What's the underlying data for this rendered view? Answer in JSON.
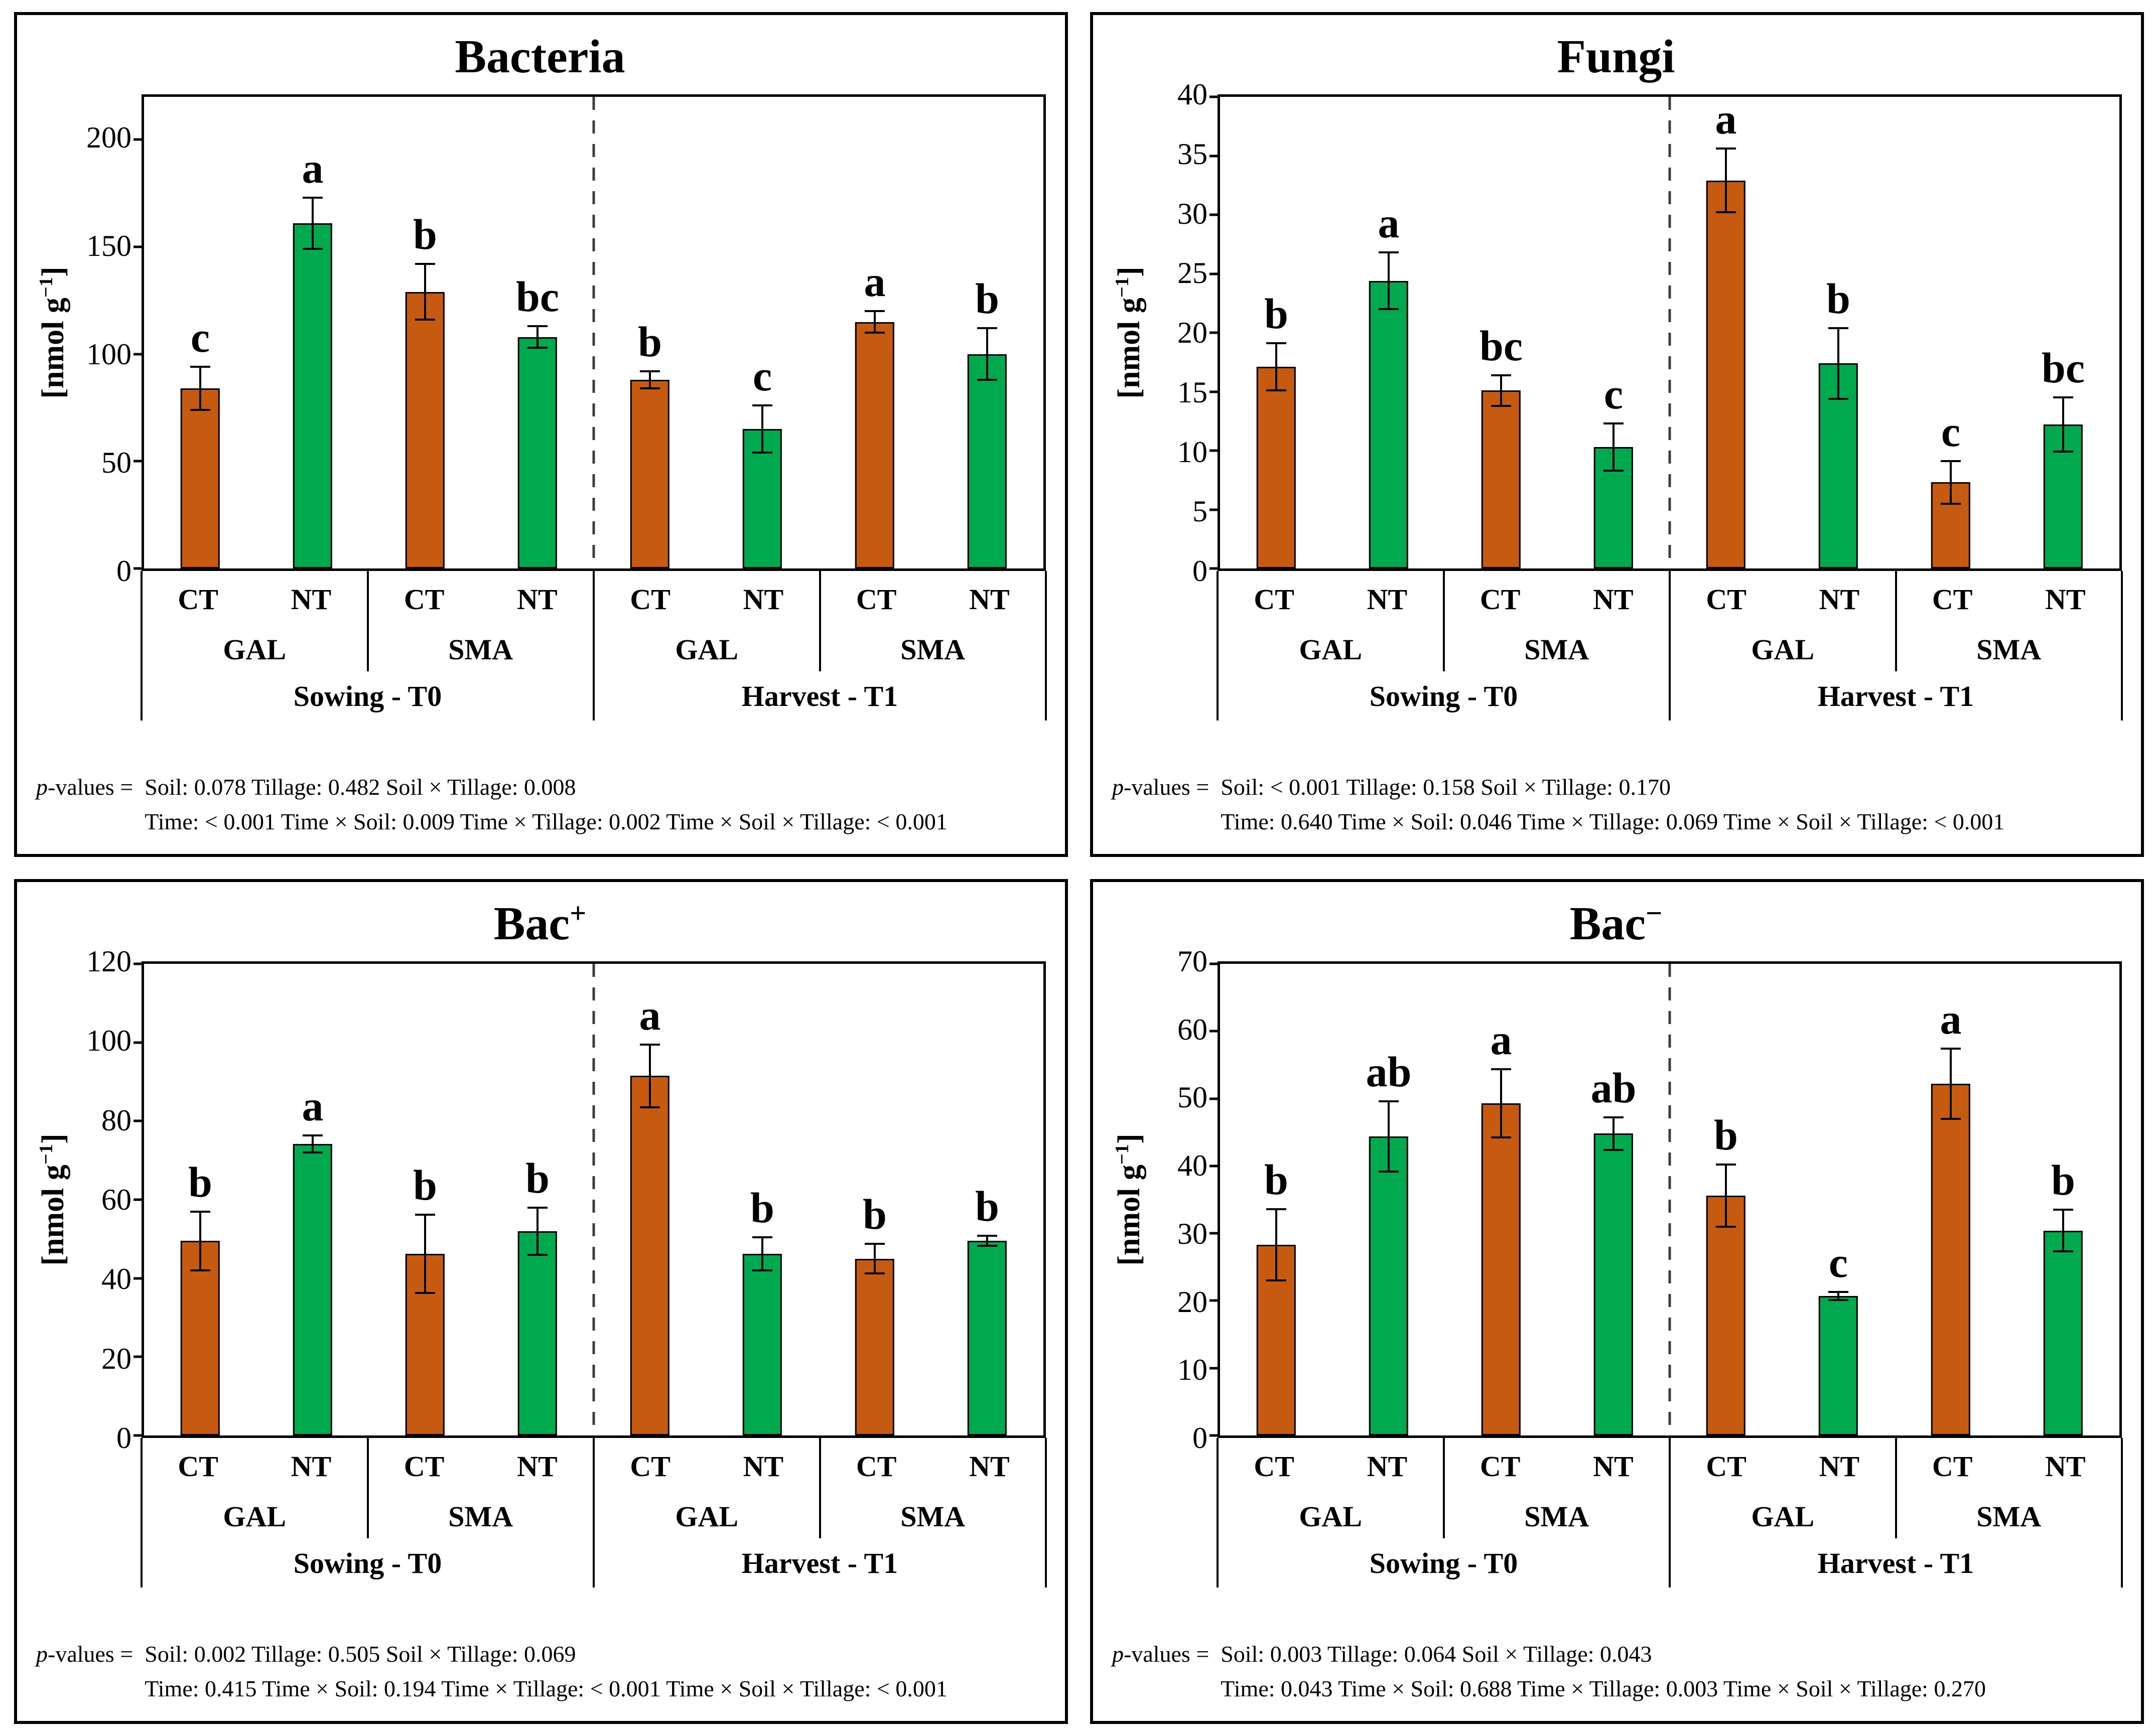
{
  "page_background": "#FFFFFF",
  "colors": {
    "ct_bar": "#C65A11",
    "nt_bar": "#00A84E",
    "bar_border": "#000000",
    "frame": "#000000",
    "dashed_divider": "#3C3C3C"
  },
  "axis": {
    "ylabel_pre": "[nmol g",
    "ylabel_sup": "−1",
    "ylabel_post": "]"
  },
  "categories": {
    "tillage": [
      "CT",
      "NT"
    ],
    "soil": [
      "GAL",
      "SMA"
    ],
    "time": [
      "Sowing - T0",
      "Harvest - T1"
    ]
  },
  "pvalues_label": {
    "italic": "p",
    "rest": "-values =  "
  },
  "chart_data": [
    {
      "type": "bar",
      "id": "bacteria",
      "title_base": "Bacteria",
      "title_sup": "",
      "ylabel": "[nmol g−1]",
      "ylim": [
        0,
        220
      ],
      "yticks": [
        0,
        50,
        100,
        150,
        200
      ],
      "legend": "none",
      "grid": false,
      "bars": [
        {
          "time": "Sowing - T0",
          "soil": "GAL",
          "tillage": "CT",
          "value": 84,
          "error": 10,
          "letter": "c"
        },
        {
          "time": "Sowing - T0",
          "soil": "GAL",
          "tillage": "NT",
          "value": 161,
          "error": 12,
          "letter": "a"
        },
        {
          "time": "Sowing - T0",
          "soil": "SMA",
          "tillage": "CT",
          "value": 129,
          "error": 13,
          "letter": "b"
        },
        {
          "time": "Sowing - T0",
          "soil": "SMA",
          "tillage": "NT",
          "value": 108,
          "error": 5,
          "letter": "bc"
        },
        {
          "time": "Harvest - T1",
          "soil": "GAL",
          "tillage": "CT",
          "value": 88,
          "error": 4,
          "letter": "b"
        },
        {
          "time": "Harvest - T1",
          "soil": "GAL",
          "tillage": "NT",
          "value": 65,
          "error": 11,
          "letter": "c"
        },
        {
          "time": "Harvest - T1",
          "soil": "SMA",
          "tillage": "CT",
          "value": 115,
          "error": 5,
          "letter": "a"
        },
        {
          "time": "Harvest - T1",
          "soil": "SMA",
          "tillage": "NT",
          "value": 100,
          "error": 12,
          "letter": "b"
        }
      ],
      "pvalues": {
        "line1": "Soil: 0.078  Tillage: 0.482  Soil × Tillage: 0.008",
        "line2": "Time: < 0.001  Time × Soil: 0.009  Time × Tillage: 0.002  Time × Soil × Tillage:  < 0.001"
      }
    },
    {
      "type": "bar",
      "id": "fungi",
      "title_base": "Fungi",
      "title_sup": "",
      "ylabel": "[nmol g−1]",
      "ylim": [
        0,
        40
      ],
      "yticks": [
        0,
        5,
        10,
        15,
        20,
        25,
        30,
        35,
        40
      ],
      "legend": "none",
      "grid": false,
      "bars": [
        {
          "time": "Sowing - T0",
          "soil": "GAL",
          "tillage": "CT",
          "value": 17.1,
          "error": 2.0,
          "letter": "b"
        },
        {
          "time": "Sowing - T0",
          "soil": "GAL",
          "tillage": "NT",
          "value": 24.4,
          "error": 2.4,
          "letter": "a"
        },
        {
          "time": "Sowing - T0",
          "soil": "SMA",
          "tillage": "CT",
          "value": 15.1,
          "error": 1.3,
          "letter": "bc"
        },
        {
          "time": "Sowing - T0",
          "soil": "SMA",
          "tillage": "NT",
          "value": 10.3,
          "error": 2.0,
          "letter": "c"
        },
        {
          "time": "Harvest - T1",
          "soil": "GAL",
          "tillage": "CT",
          "value": 32.9,
          "error": 2.7,
          "letter": "a"
        },
        {
          "time": "Harvest - T1",
          "soil": "GAL",
          "tillage": "NT",
          "value": 17.4,
          "error": 3.0,
          "letter": "b"
        },
        {
          "time": "Harvest - T1",
          "soil": "SMA",
          "tillage": "CT",
          "value": 7.3,
          "error": 1.8,
          "letter": "c"
        },
        {
          "time": "Harvest - T1",
          "soil": "SMA",
          "tillage": "NT",
          "value": 12.2,
          "error": 2.3,
          "letter": "bc"
        }
      ],
      "pvalues": {
        "line1": "Soil: < 0.001  Tillage: 0.158  Soil × Tillage: 0.170",
        "line2": "Time: 0.640  Time × Soil: 0.046  Time × Tillage: 0.069  Time ×  Soil × Tillage:  < 0.001"
      }
    },
    {
      "type": "bar",
      "id": "bac-plus",
      "title_base": "Bac",
      "title_sup": "+",
      "ylabel": "[nmol g−1]",
      "ylim": [
        0,
        120
      ],
      "yticks": [
        0,
        20,
        40,
        60,
        80,
        100,
        120
      ],
      "legend": "none",
      "grid": false,
      "bars": [
        {
          "time": "Sowing - T0",
          "soil": "GAL",
          "tillage": "CT",
          "value": 49.5,
          "error": 7.5,
          "letter": "b"
        },
        {
          "time": "Sowing - T0",
          "soil": "GAL",
          "tillage": "NT",
          "value": 74.2,
          "error": 2.2,
          "letter": "a"
        },
        {
          "time": "Sowing - T0",
          "soil": "SMA",
          "tillage": "CT",
          "value": 46.2,
          "error": 10.0,
          "letter": "b"
        },
        {
          "time": "Sowing - T0",
          "soil": "SMA",
          "tillage": "NT",
          "value": 52.0,
          "error": 6.0,
          "letter": "b"
        },
        {
          "time": "Harvest - T1",
          "soil": "GAL",
          "tillage": "CT",
          "value": 91.5,
          "error": 8.0,
          "letter": "a"
        },
        {
          "time": "Harvest - T1",
          "soil": "GAL",
          "tillage": "NT",
          "value": 46.2,
          "error": 4.2,
          "letter": "b"
        },
        {
          "time": "Harvest - T1",
          "soil": "SMA",
          "tillage": "CT",
          "value": 45.0,
          "error": 3.8,
          "letter": "b"
        },
        {
          "time": "Harvest - T1",
          "soil": "SMA",
          "tillage": "NT",
          "value": 49.5,
          "error": 1.3,
          "letter": "b"
        }
      ],
      "pvalues": {
        "line1": "Soil: 0.002  Tillage: 0.505  Soil × Tillage: 0.069",
        "line2": "Time: 0.415  Time × Soil: 0.194  Time × Tillage: < 0.001  Time × Soil × Tillage: < 0.001"
      }
    },
    {
      "type": "bar",
      "id": "bac-minus",
      "title_base": "Bac",
      "title_sup": "−",
      "ylabel": "[nmol g−1]",
      "ylim": [
        0,
        70
      ],
      "yticks": [
        0,
        10,
        20,
        30,
        40,
        50,
        60,
        70
      ],
      "legend": "none",
      "grid": false,
      "bars": [
        {
          "time": "Sowing - T0",
          "soil": "GAL",
          "tillage": "CT",
          "value": 28.3,
          "error": 5.3,
          "letter": "b"
        },
        {
          "time": "Sowing - T0",
          "soil": "GAL",
          "tillage": "NT",
          "value": 44.4,
          "error": 5.2,
          "letter": "ab"
        },
        {
          "time": "Sowing - T0",
          "soil": "SMA",
          "tillage": "CT",
          "value": 49.3,
          "error": 5.1,
          "letter": "a"
        },
        {
          "time": "Sowing - T0",
          "soil": "SMA",
          "tillage": "NT",
          "value": 44.8,
          "error": 2.4,
          "letter": "ab"
        },
        {
          "time": "Harvest - T1",
          "soil": "GAL",
          "tillage": "CT",
          "value": 35.6,
          "error": 4.6,
          "letter": "b"
        },
        {
          "time": "Harvest - T1",
          "soil": "GAL",
          "tillage": "NT",
          "value": 20.7,
          "error": 0.6,
          "letter": "c"
        },
        {
          "time": "Harvest - T1",
          "soil": "SMA",
          "tillage": "CT",
          "value": 52.2,
          "error": 5.2,
          "letter": "a"
        },
        {
          "time": "Harvest - T1",
          "soil": "SMA",
          "tillage": "NT",
          "value": 30.4,
          "error": 3.1,
          "letter": "b"
        }
      ],
      "pvalues": {
        "line1": "Soil: 0.003  Tillage: 0.064  Soil × Tillage: 0.043",
        "line2": "Time: 0.043  Time × Soil: 0.688  Time × Tillage: 0.003  Time ×  Soil × Tillage: 0.270"
      }
    }
  ]
}
